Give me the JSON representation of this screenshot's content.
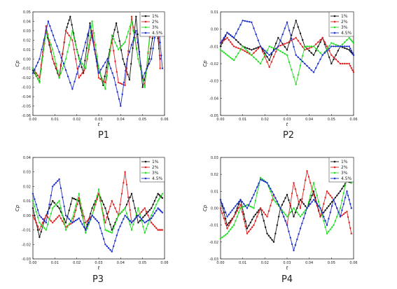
{
  "colors": {
    "1%": "#111111",
    "2%": "#e02020",
    "3%": "#22dd22",
    "4.5%": "#1a2fcc"
  },
  "chart_data": [
    {
      "type": "line",
      "title": "P1",
      "xlabel": "t",
      "ylabel": "Cp",
      "xlim": [
        0.0,
        0.06
      ],
      "ylim": [
        -0.06,
        0.05
      ],
      "xticks": [
        "0.00",
        "0.01",
        "0.02",
        "0.03",
        "0.04",
        "0.05",
        "0.06"
      ],
      "yticks": [
        "-0.06",
        "-0.05",
        "-0.04",
        "-0.03",
        "-0.02",
        "-0.01",
        "0.00",
        "0.01",
        "0.02",
        "0.03",
        "0.04",
        "0.05"
      ],
      "legend_position": "top-right",
      "series": [
        {
          "name": "1%",
          "x": [
            0,
            0.003,
            0.006,
            0.009,
            0.012,
            0.015,
            0.017,
            0.02,
            0.023,
            0.026,
            0.029,
            0.032,
            0.035,
            0.038,
            0.041,
            0.044,
            0.047,
            0.05,
            0.053,
            0.056,
            0.058
          ],
          "y": [
            -0.012,
            -0.024,
            0.03,
            0.0,
            -0.02,
            0.03,
            0.045,
            0.01,
            -0.015,
            0.038,
            0.0,
            -0.028,
            0.01,
            0.038,
            0.0,
            -0.022,
            0.045,
            -0.03,
            0.0,
            0.044,
            0.0
          ]
        },
        {
          "name": "2%",
          "x": [
            0,
            0.003,
            0.006,
            0.009,
            0.012,
            0.015,
            0.018,
            0.021,
            0.024,
            0.027,
            0.03,
            0.033,
            0.036,
            0.039,
            0.042,
            0.045,
            0.048,
            0.051,
            0.054,
            0.057,
            0.058
          ],
          "y": [
            -0.01,
            -0.02,
            0.035,
            0.0,
            -0.018,
            0.03,
            0.02,
            -0.02,
            -0.01,
            0.03,
            -0.02,
            -0.025,
            0.02,
            -0.025,
            -0.028,
            0.045,
            0.0,
            -0.028,
            0.04,
            0.045,
            -0.01
          ]
        },
        {
          "name": "3%",
          "x": [
            0,
            0.003,
            0.006,
            0.009,
            0.012,
            0.015,
            0.018,
            0.021,
            0.024,
            0.027,
            0.03,
            0.033,
            0.036,
            0.039,
            0.042,
            0.045,
            0.048,
            0.051,
            0.054,
            0.057
          ],
          "y": [
            -0.01,
            -0.025,
            0.03,
            0.01,
            -0.02,
            0.0,
            0.03,
            0.0,
            -0.01,
            0.04,
            -0.01,
            -0.032,
            0.025,
            0.01,
            0.018,
            0.04,
            0.0,
            -0.03,
            0.045,
            0.044
          ]
        },
        {
          "name": "4.5%",
          "x": [
            0,
            0.003,
            0.007,
            0.01,
            0.014,
            0.018,
            0.022,
            0.026,
            0.03,
            0.034,
            0.037,
            0.04,
            0.043,
            0.047,
            0.05,
            0.054,
            0.057,
            0.059
          ],
          "y": [
            -0.015,
            0.0,
            0.04,
            0.02,
            -0.005,
            -0.032,
            0.0,
            0.035,
            -0.015,
            0.0,
            -0.02,
            -0.05,
            0.0,
            0.03,
            -0.02,
            0.0,
            0.045,
            -0.01
          ]
        }
      ]
    },
    {
      "type": "line",
      "title": "P2",
      "xlabel": "t",
      "ylabel": "Cp",
      "xlim": [
        0.0,
        0.06
      ],
      "ylim": [
        -0.05,
        0.01
      ],
      "xticks": [
        "0.00",
        "0.01",
        "0.02",
        "0.03",
        "0.04",
        "0.05",
        "0.06"
      ],
      "yticks": [
        "-0.05",
        "-0.04",
        "-0.03",
        "-0.02",
        "-0.01",
        "0.00",
        "0.01"
      ],
      "legend_position": "top-right",
      "series": [
        {
          "name": "1%",
          "x": [
            0,
            0.003,
            0.006,
            0.01,
            0.014,
            0.018,
            0.022,
            0.026,
            0.03,
            0.034,
            0.038,
            0.042,
            0.046,
            0.05,
            0.054,
            0.058,
            0.06
          ],
          "y": [
            -0.01,
            -0.002,
            -0.005,
            -0.01,
            -0.012,
            -0.01,
            -0.018,
            -0.005,
            -0.012,
            0.005,
            -0.01,
            -0.015,
            -0.005,
            -0.02,
            -0.01,
            -0.012,
            -0.015
          ]
        },
        {
          "name": "2%",
          "x": [
            0,
            0.003,
            0.006,
            0.01,
            0.014,
            0.018,
            0.022,
            0.026,
            0.03,
            0.034,
            0.038,
            0.042,
            0.046,
            0.05,
            0.054,
            0.058,
            0.06
          ],
          "y": [
            -0.008,
            -0.005,
            -0.01,
            -0.012,
            -0.015,
            -0.01,
            -0.022,
            -0.01,
            -0.008,
            -0.005,
            -0.012,
            -0.01,
            -0.005,
            -0.015,
            -0.02,
            -0.02,
            -0.025
          ]
        },
        {
          "name": "3%",
          "x": [
            0,
            0.003,
            0.006,
            0.01,
            0.014,
            0.018,
            0.022,
            0.026,
            0.03,
            0.034,
            0.038,
            0.042,
            0.046,
            0.05,
            0.054,
            0.058,
            0.06
          ],
          "y": [
            -0.012,
            -0.015,
            -0.018,
            -0.01,
            -0.015,
            -0.02,
            -0.01,
            -0.012,
            -0.015,
            -0.032,
            -0.01,
            -0.01,
            -0.015,
            -0.008,
            -0.01,
            -0.005,
            -0.008
          ]
        },
        {
          "name": "4.5%",
          "x": [
            0,
            0.003,
            0.006,
            0.01,
            0.014,
            0.018,
            0.022,
            0.026,
            0.03,
            0.034,
            0.038,
            0.042,
            0.046,
            0.05,
            0.054,
            0.058,
            0.06
          ],
          "y": [
            -0.008,
            -0.002,
            -0.005,
            0.005,
            0.004,
            -0.01,
            -0.015,
            -0.01,
            0.004,
            -0.015,
            -0.02,
            -0.025,
            -0.015,
            -0.01,
            -0.01,
            -0.01,
            -0.015
          ]
        }
      ]
    },
    {
      "type": "line",
      "title": "P3",
      "xlabel": "t",
      "ylabel": "Cp",
      "xlim": [
        0.0,
        0.06
      ],
      "ylim": [
        -0.03,
        0.04
      ],
      "xticks": [
        "0.00",
        "0.01",
        "0.02",
        "0.03",
        "0.04",
        "0.05",
        "0.06"
      ],
      "yticks": [
        "-0.03",
        "-0.02",
        "-0.01",
        "0.00",
        "0.01",
        "0.02",
        "0.03",
        "0.04"
      ],
      "legend_position": "top-right",
      "series": [
        {
          "name": "1%",
          "x": [
            0,
            0.003,
            0.006,
            0.009,
            0.012,
            0.015,
            0.018,
            0.021,
            0.024,
            0.027,
            0.03,
            0.033,
            0.036,
            0.039,
            0.042,
            0.045,
            0.048,
            0.051,
            0.054,
            0.057,
            0.059
          ],
          "y": [
            0.005,
            -0.015,
            0.0,
            0.01,
            0.005,
            -0.005,
            0.012,
            0.01,
            -0.01,
            0.005,
            0.015,
            0.005,
            -0.01,
            0.0,
            0.005,
            0.015,
            -0.005,
            0.0,
            0.005,
            0.015,
            0.012
          ]
        },
        {
          "name": "2%",
          "x": [
            0,
            0.003,
            0.006,
            0.009,
            0.012,
            0.015,
            0.018,
            0.021,
            0.024,
            0.027,
            0.03,
            0.033,
            0.036,
            0.039,
            0.042,
            0.045,
            0.048,
            0.051,
            0.054,
            0.057,
            0.059
          ],
          "y": [
            0.0,
            -0.01,
            0.0,
            -0.005,
            0.0,
            -0.008,
            -0.005,
            0.012,
            -0.005,
            0.0,
            0.015,
            -0.005,
            0.01,
            0.0,
            0.03,
            -0.005,
            0.0,
            0.005,
            -0.005,
            -0.01,
            -0.01
          ]
        },
        {
          "name": "3%",
          "x": [
            0,
            0.003,
            0.006,
            0.009,
            0.012,
            0.015,
            0.018,
            0.021,
            0.024,
            0.027,
            0.03,
            0.033,
            0.036,
            0.039,
            0.042,
            0.045,
            0.048,
            0.051,
            0.054,
            0.057,
            0.059
          ],
          "y": [
            0.01,
            -0.005,
            -0.01,
            0.005,
            0.01,
            -0.01,
            -0.002,
            0.015,
            -0.012,
            0.0,
            0.018,
            -0.01,
            -0.012,
            0.0,
            0.005,
            -0.01,
            0.005,
            -0.012,
            0.0,
            0.01,
            0.015
          ]
        },
        {
          "name": "4.5%",
          "x": [
            0,
            0.003,
            0.006,
            0.009,
            0.012,
            0.015,
            0.018,
            0.021,
            0.024,
            0.027,
            0.03,
            0.033,
            0.036,
            0.039,
            0.042,
            0.045,
            0.048,
            0.051,
            0.054,
            0.057,
            0.059
          ],
          "y": [
            0.015,
            0.0,
            -0.005,
            0.02,
            0.025,
            0.0,
            -0.005,
            -0.002,
            -0.01,
            0.0,
            -0.005,
            -0.02,
            -0.025,
            -0.01,
            0.0,
            -0.005,
            0.0,
            -0.005,
            -0.002,
            0.005,
            0.002
          ]
        }
      ]
    },
    {
      "type": "line",
      "title": "P4",
      "xlabel": "t",
      "ylabel": "Cp",
      "xlim": [
        0.0,
        0.06
      ],
      "ylim": [
        -0.03,
        0.03
      ],
      "xticks": [
        "0.00",
        "0.01",
        "0.02",
        "0.03",
        "0.04",
        "0.05",
        "0.06"
      ],
      "yticks": [
        "-0.03",
        "-0.02",
        "-0.01",
        "0.00",
        "0.01",
        "0.02",
        "0.03"
      ],
      "legend_position": "top-right",
      "series": [
        {
          "name": "1%",
          "x": [
            0,
            0.003,
            0.006,
            0.009,
            0.012,
            0.015,
            0.018,
            0.021,
            0.024,
            0.027,
            0.03,
            0.033,
            0.036,
            0.039,
            0.042,
            0.045,
            0.048,
            0.051,
            0.054,
            0.057,
            0.059
          ],
          "y": [
            0.005,
            -0.01,
            -0.005,
            0.005,
            -0.012,
            -0.005,
            0.0,
            -0.015,
            -0.02,
            0.0,
            0.008,
            -0.005,
            0.005,
            0.0,
            0.01,
            -0.005,
            0.0,
            0.005,
            0.01,
            0.016,
            0.015
          ]
        },
        {
          "name": "2%",
          "x": [
            0,
            0.003,
            0.006,
            0.009,
            0.012,
            0.015,
            0.018,
            0.021,
            0.024,
            0.027,
            0.03,
            0.033,
            0.036,
            0.039,
            0.042,
            0.045,
            0.048,
            0.051,
            0.054,
            0.057,
            0.059
          ],
          "y": [
            0.0,
            -0.012,
            -0.005,
            0.002,
            -0.015,
            -0.01,
            0.0,
            -0.005,
            0.008,
            0.0,
            -0.01,
            0.015,
            0.0,
            0.022,
            0.008,
            -0.005,
            0.01,
            0.005,
            -0.005,
            -0.002,
            -0.015
          ]
        },
        {
          "name": "3%",
          "x": [
            0,
            0.003,
            0.006,
            0.009,
            0.012,
            0.015,
            0.018,
            0.021,
            0.024,
            0.027,
            0.03,
            0.033,
            0.036,
            0.039,
            0.042,
            0.045,
            0.048,
            0.051,
            0.054,
            0.057,
            0.059
          ],
          "y": [
            -0.018,
            -0.015,
            -0.01,
            0.0,
            0.002,
            0.0,
            0.018,
            0.015,
            0.005,
            0.0,
            -0.005,
            0.0,
            -0.005,
            0.0,
            0.015,
            0.0,
            -0.015,
            -0.01,
            0.0,
            0.018,
            0.015
          ]
        },
        {
          "name": "4.5%",
          "x": [
            0,
            0.003,
            0.006,
            0.009,
            0.012,
            0.015,
            0.018,
            0.021,
            0.024,
            0.027,
            0.03,
            0.033,
            0.036,
            0.039,
            0.042,
            0.045,
            0.048,
            0.051,
            0.054,
            0.057,
            0.059
          ],
          "y": [
            0.005,
            -0.005,
            0.0,
            0.005,
            0.0,
            0.008,
            0.017,
            0.015,
            0.008,
            0.0,
            -0.01,
            -0.025,
            -0.012,
            0.0,
            0.005,
            0.0,
            -0.01,
            0.005,
            -0.005,
            0.01,
            0.0
          ]
        }
      ]
    }
  ]
}
